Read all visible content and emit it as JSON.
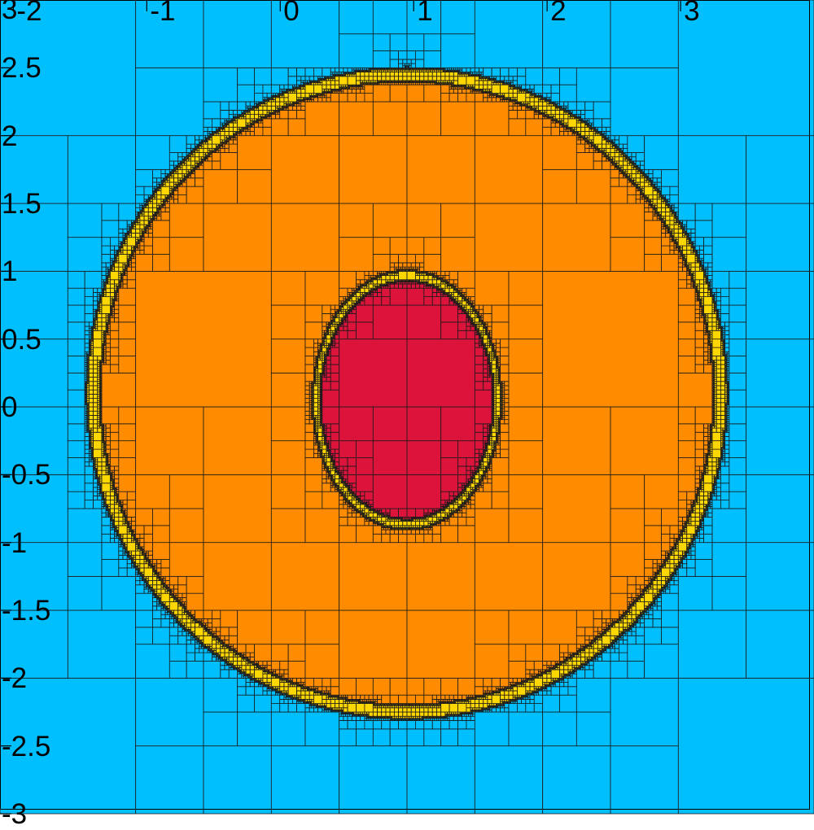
{
  "chart_data": {
    "type": "heatmap",
    "description_grid": "adaptive quadtree mesh",
    "x_axis": {
      "range": [
        -2,
        4
      ],
      "ticks": [
        "-2",
        "-1",
        "0",
        "1",
        "2",
        "3"
      ]
    },
    "y_axis": {
      "range": [
        -3,
        3
      ],
      "ticks": [
        "3",
        "2.5",
        "2",
        "1.5",
        "1",
        "0.5",
        "0",
        "-0.5",
        "-1",
        "-1.5",
        "-2",
        "-2.5",
        "-3"
      ]
    },
    "ranges": {
      "x": {
        "min": -2.1,
        "max": 4.0
      },
      "y": {
        "min": -3.0,
        "max": 3.0
      }
    },
    "levels": [
      {
        "color": "#00bfff"
      },
      {
        "color": "#ffd700"
      },
      {
        "color": "#ff8c00"
      },
      {
        "color": "#dc143c"
      }
    ],
    "field": {
      "outer_center": [
        0.95,
        0.1
      ],
      "outer_radius": 2.3,
      "inner_center": [
        0.95,
        0.05
      ],
      "inner_rx": 0.65,
      "inner_ry": 0.88
    },
    "grid": true
  }
}
